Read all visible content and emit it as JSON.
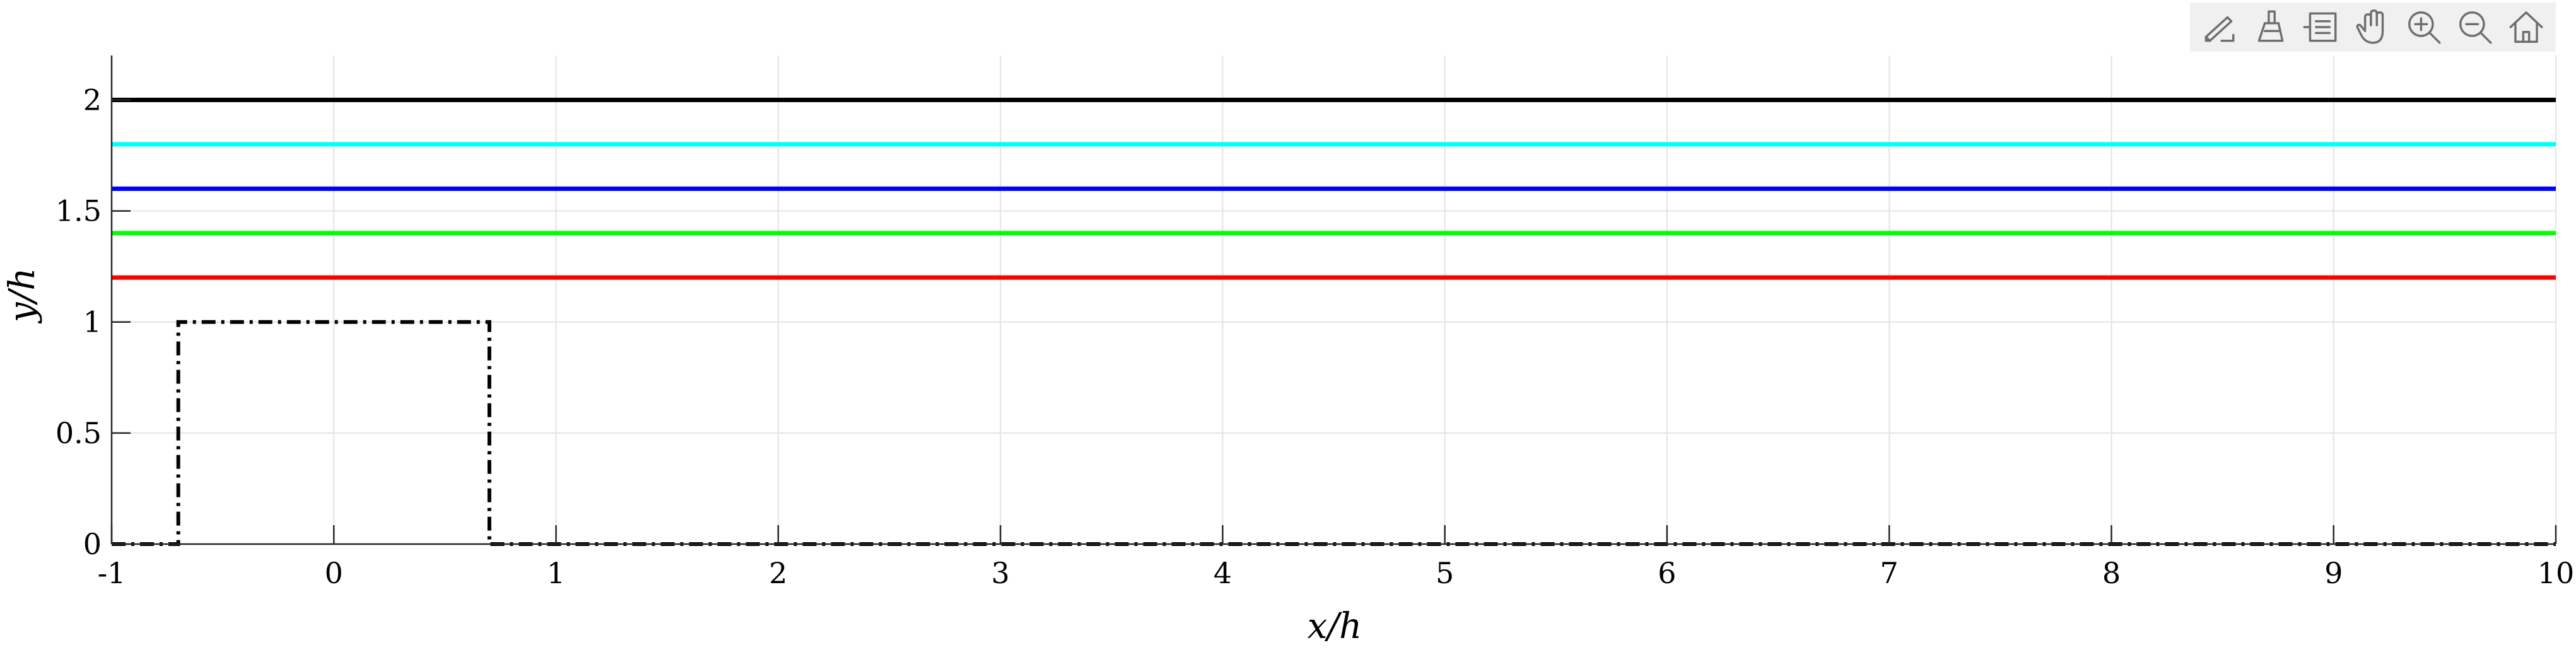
{
  "toolbar": {
    "items": [
      {
        "icon": "edit-data-tip-icon"
      },
      {
        "icon": "brush-icon"
      },
      {
        "icon": "legend-icon"
      },
      {
        "icon": "pan-hand-icon"
      },
      {
        "icon": "zoom-in-icon"
      },
      {
        "icon": "zoom-out-icon"
      },
      {
        "icon": "home-icon"
      }
    ]
  },
  "chart_data": {
    "type": "line",
    "xlabel": "x/h",
    "ylabel": "y/h",
    "xlim": [
      -1,
      10
    ],
    "ylim": [
      0,
      2.2
    ],
    "xticks": [
      -1,
      0,
      1,
      2,
      3,
      4,
      5,
      6,
      7,
      8,
      9,
      10
    ],
    "xtick_labels": [
      "-1",
      "0",
      "1",
      "2",
      "3",
      "4",
      "5",
      "6",
      "7",
      "8",
      "9",
      "10"
    ],
    "yticks": [
      0,
      0.5,
      1,
      1.5,
      2
    ],
    "ytick_labels": [
      "0",
      "0.5",
      "1",
      "1.5",
      "2"
    ],
    "grid": true,
    "series": [
      {
        "color": "#000000",
        "style": "dashdot",
        "x": [
          -1,
          -0.7,
          -0.7,
          0.7,
          0.7,
          10
        ],
        "y": [
          0,
          0,
          1,
          1,
          0,
          0
        ]
      },
      {
        "color": "#ff0000",
        "style": "solid",
        "x": [
          -1,
          10
        ],
        "y": [
          1.2,
          1.2
        ]
      },
      {
        "color": "#00ff00",
        "style": "solid",
        "x": [
          -1,
          10
        ],
        "y": [
          1.4,
          1.4
        ]
      },
      {
        "color": "#0000ff",
        "style": "solid",
        "x": [
          -1,
          10
        ],
        "y": [
          1.6,
          1.6
        ]
      },
      {
        "color": "#00ffff",
        "style": "solid",
        "x": [
          -1,
          10
        ],
        "y": [
          1.8,
          1.8
        ]
      },
      {
        "color": "#000000",
        "style": "solid",
        "x": [
          -1,
          10
        ],
        "y": [
          2,
          2
        ]
      }
    ]
  }
}
